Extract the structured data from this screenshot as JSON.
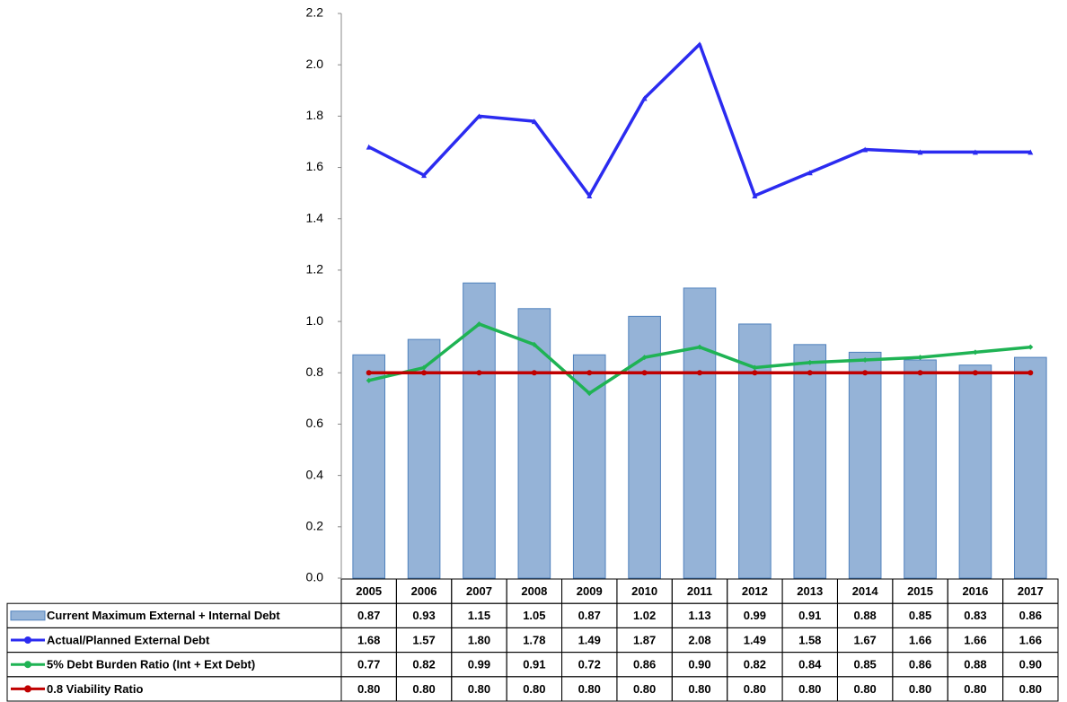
{
  "chart_data": {
    "type": "bar",
    "categories": [
      "2005",
      "2006",
      "2007",
      "2008",
      "2009",
      "2010",
      "2011",
      "2012",
      "2013",
      "2014",
      "2015",
      "2016",
      "2017"
    ],
    "series": [
      {
        "name": "Current Maximum External + Internal Debt",
        "type": "bar",
        "color": "#95b3d7",
        "values": [
          0.87,
          0.93,
          1.15,
          1.05,
          0.87,
          1.02,
          1.13,
          0.99,
          0.91,
          0.88,
          0.85,
          0.83,
          0.86
        ],
        "value_labels": [
          "0.87",
          "0.93",
          "1.15",
          "1.05",
          "0.87",
          "1.02",
          "1.13",
          "0.99",
          "0.91",
          "0.88",
          "0.85",
          "0.83",
          "0.86"
        ]
      },
      {
        "name": "Actual/Planned External Debt",
        "type": "line",
        "marker": "triangle",
        "color": "#2b2bf0",
        "values": [
          1.68,
          1.57,
          1.8,
          1.78,
          1.49,
          1.87,
          2.08,
          1.49,
          1.58,
          1.67,
          1.66,
          1.66,
          1.66
        ],
        "value_labels": [
          "1.68",
          "1.57",
          "1.80",
          "1.78",
          "1.49",
          "1.87",
          "2.08",
          "1.49",
          "1.58",
          "1.67",
          "1.66",
          "1.66",
          "1.66"
        ]
      },
      {
        "name": "5% Debt Burden Ratio (Int + Ext Debt)",
        "type": "line",
        "marker": "diamond",
        "color": "#1fb354",
        "values": [
          0.77,
          0.82,
          0.99,
          0.91,
          0.72,
          0.86,
          0.9,
          0.82,
          0.84,
          0.85,
          0.86,
          0.88,
          0.9
        ],
        "value_labels": [
          "0.77",
          "0.82",
          "0.99",
          "0.91",
          "0.72",
          "0.86",
          "0.90",
          "0.82",
          "0.84",
          "0.85",
          "0.86",
          "0.88",
          "0.90"
        ]
      },
      {
        "name": "0.8 Viability Ratio",
        "type": "line",
        "marker": "circle",
        "color": "#c00000",
        "values": [
          0.8,
          0.8,
          0.8,
          0.8,
          0.8,
          0.8,
          0.8,
          0.8,
          0.8,
          0.8,
          0.8,
          0.8,
          0.8
        ],
        "value_labels": [
          "0.80",
          "0.80",
          "0.80",
          "0.80",
          "0.80",
          "0.80",
          "0.80",
          "0.80",
          "0.80",
          "0.80",
          "0.80",
          "0.80",
          "0.80"
        ]
      }
    ],
    "ylim": [
      0,
      2.2
    ],
    "yticks": [
      {
        "value": 0,
        "label": "0.0"
      },
      0.2,
      0.4,
      0.6,
      0.8,
      {
        "value": 1,
        "label": "1.0"
      },
      1.2,
      1.4,
      1.6,
      1.8,
      {
        "value": 2,
        "label": "2.0"
      },
      2.2
    ],
    "grid": false
  }
}
